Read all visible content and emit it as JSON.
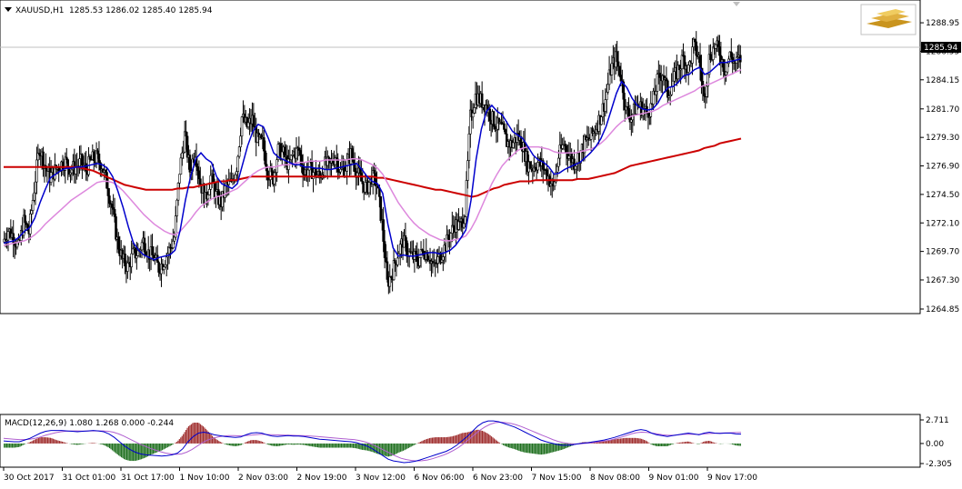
{
  "chart_data": [
    {
      "type": "candlestick",
      "symbol_header": "XAUUSD,H1",
      "ohlc_header": "1285.53 1286.02 1285.40 1285.94",
      "current_price_label": "1285.94",
      "ylim": [
        1264.85,
        1289.95
      ],
      "y_ticks": [
        "1288.95",
        "1286.55",
        "1284.15",
        "1281.70",
        "1279.30",
        "1276.90",
        "1274.50",
        "1272.10",
        "1269.70",
        "1267.30",
        "1264.85"
      ],
      "x_ticks": [
        "30 Oct 2017",
        "31 Oct 01:00",
        "31 Oct 17:00",
        "1 Nov 10:00",
        "2 Nov 03:00",
        "2 Nov 19:00",
        "3 Nov 12:00",
        "6 Nov 06:00",
        "6 Nov 23:00",
        "7 Nov 15:00",
        "8 Nov 08:00",
        "9 Nov 01:00",
        "9 Nov 17:00"
      ],
      "colors": {
        "candle": "#000000",
        "fast_ma": "#0000cc",
        "mid_ma": "#dd88dd",
        "slow_ma": "#cc0000",
        "price_line": "#c0c0c0"
      },
      "close_path": [
        1270.5,
        1271.5,
        1271.0,
        1270.0,
        1272.2,
        1271.3,
        1275.0,
        1278.5,
        1277.0,
        1276.0,
        1276.5,
        1277.0,
        1277.3,
        1276.6,
        1276.8,
        1277.2,
        1276.6,
        1277.4,
        1277.6,
        1277.0,
        1275.4,
        1273.4,
        1270.6,
        1269.0,
        1268.4,
        1269.4,
        1269.6,
        1270.6,
        1269.6,
        1269.2,
        1268.3,
        1268.9,
        1269.8,
        1270.9,
        1276.5,
        1279.5,
        1276.5,
        1278.2,
        1275.5,
        1274.0,
        1276.0,
        1274.4,
        1273.8,
        1275.2,
        1275.4,
        1276.9,
        1281.0,
        1280.2,
        1280.8,
        1279.0,
        1278.8,
        1276.4,
        1275.9,
        1278.2,
        1277.9,
        1276.9,
        1278.0,
        1278.2,
        1276.3,
        1276.7,
        1276.3,
        1276.0,
        1277.0,
        1276.9,
        1277.8,
        1276.4,
        1276.8,
        1277.9,
        1276.6,
        1275.6,
        1275.0,
        1276.0,
        1275.4,
        1272.0,
        1267.0,
        1268.0,
        1269.5,
        1270.6,
        1269.6,
        1269.2,
        1269.0,
        1269.8,
        1269.4,
        1268.3,
        1269.2,
        1270.0,
        1271.0,
        1272.0,
        1271.8,
        1273.0,
        1281.0,
        1282.8,
        1282.4,
        1282.0,
        1281.0,
        1280.3,
        1280.1,
        1278.9,
        1278.7,
        1279.4,
        1278.8,
        1277.1,
        1276.8,
        1277.2,
        1276.8,
        1276.0,
        1275.0,
        1277.7,
        1278.8,
        1277.8,
        1277.2,
        1277.8,
        1278.8,
        1279.2,
        1280.0,
        1281.0,
        1282.5,
        1285.0,
        1286.0,
        1284.5,
        1281.5,
        1281.0,
        1282.0,
        1281.8,
        1281.4,
        1282.0,
        1284.0,
        1284.8,
        1283.0,
        1284.0,
        1285.0,
        1286.0,
        1285.0,
        1287.0,
        1286.0,
        1282.5,
        1286.0,
        1287.0,
        1286.5,
        1285.0,
        1286.2,
        1285.5,
        1285.9
      ],
      "series": [
        {
          "name": "fast_ma",
          "values": [
            1270.4,
            1270.5,
            1270.6,
            1270.9,
            1271.4,
            1271.7,
            1272.5,
            1273.8,
            1274.9,
            1275.9,
            1276.2,
            1276.5,
            1276.7,
            1276.7,
            1276.8,
            1276.8,
            1276.9,
            1277.0,
            1277.1,
            1277.0,
            1276.7,
            1276.0,
            1274.8,
            1273.4,
            1271.8,
            1270.4,
            1269.8,
            1269.4,
            1269.2,
            1269.0,
            1269.2,
            1269.3,
            1269.4,
            1269.8,
            1271.5,
            1274.0,
            1276.0,
            1277.5,
            1278.0,
            1277.5,
            1277.2,
            1276.0,
            1275.4,
            1275.2,
            1275.0,
            1275.4,
            1277.0,
            1278.6,
            1279.8,
            1280.4,
            1280.2,
            1279.2,
            1278.0,
            1277.6,
            1277.4,
            1277.2,
            1277.0,
            1277.0,
            1276.8,
            1276.8,
            1276.7,
            1276.7,
            1276.6,
            1276.6,
            1276.7,
            1276.8,
            1276.9,
            1277.0,
            1277.1,
            1276.6,
            1276.0,
            1275.6,
            1275.4,
            1274.6,
            1272.0,
            1270.0,
            1269.3,
            1269.4,
            1269.3,
            1269.3,
            1269.4,
            1269.5,
            1269.6,
            1269.6,
            1269.5,
            1269.6,
            1269.8,
            1270.2,
            1270.8,
            1271.5,
            1274.0,
            1277.5,
            1280.0,
            1281.5,
            1282.0,
            1281.5,
            1281.2,
            1280.5,
            1279.8,
            1279.5,
            1279.2,
            1278.5,
            1277.8,
            1277.4,
            1277.2,
            1276.8,
            1276.2,
            1276.3,
            1276.6,
            1276.8,
            1277.0,
            1277.2,
            1277.6,
            1278.0,
            1278.5,
            1279.2,
            1280.2,
            1281.6,
            1283.0,
            1284.0,
            1283.5,
            1282.6,
            1282.0,
            1281.7,
            1281.6,
            1281.7,
            1282.2,
            1283.0,
            1283.5,
            1283.6,
            1284.0,
            1284.5,
            1284.6,
            1285.0,
            1285.2,
            1284.6,
            1284.8,
            1285.2,
            1285.6,
            1285.6,
            1285.7,
            1285.8,
            1285.9
          ]
        },
        {
          "name": "mid_ma",
          "values": [
            1270.2,
            1270.3,
            1270.4,
            1270.5,
            1270.6,
            1270.8,
            1271.1,
            1271.5,
            1272.0,
            1272.4,
            1272.8,
            1273.2,
            1273.6,
            1274.0,
            1274.3,
            1274.6,
            1274.9,
            1275.2,
            1275.5,
            1275.6,
            1275.6,
            1275.5,
            1275.2,
            1274.8,
            1274.3,
            1273.8,
            1273.3,
            1272.8,
            1272.4,
            1272.0,
            1271.7,
            1271.4,
            1271.2,
            1271.1,
            1271.4,
            1271.9,
            1272.4,
            1273.0,
            1273.5,
            1273.8,
            1274.1,
            1274.3,
            1274.4,
            1274.6,
            1274.8,
            1275.0,
            1275.4,
            1275.8,
            1276.2,
            1276.5,
            1276.7,
            1276.8,
            1276.8,
            1276.9,
            1277.0,
            1277.0,
            1277.1,
            1277.2,
            1277.2,
            1277.3,
            1277.3,
            1277.3,
            1277.4,
            1277.4,
            1277.4,
            1277.4,
            1277.4,
            1277.5,
            1277.5,
            1277.4,
            1277.2,
            1277.0,
            1276.7,
            1276.2,
            1275.4,
            1274.6,
            1273.8,
            1273.2,
            1272.6,
            1272.1,
            1271.7,
            1271.4,
            1271.1,
            1270.9,
            1270.7,
            1270.6,
            1270.6,
            1270.7,
            1270.8,
            1271.0,
            1271.6,
            1272.4,
            1273.4,
            1274.4,
            1275.4,
            1276.2,
            1276.9,
            1277.4,
            1277.8,
            1278.2,
            1278.4,
            1278.5,
            1278.5,
            1278.5,
            1278.4,
            1278.3,
            1278.1,
            1278.0,
            1278.0,
            1278.0,
            1278.0,
            1278.1,
            1278.2,
            1278.3,
            1278.5,
            1278.8,
            1279.2,
            1279.7,
            1280.2,
            1280.6,
            1280.9,
            1281.1,
            1281.2,
            1281.3,
            1281.4,
            1281.5,
            1281.7,
            1282.0,
            1282.2,
            1282.4,
            1282.6,
            1282.8,
            1283.0,
            1283.2,
            1283.5,
            1283.7,
            1283.8,
            1284.0,
            1284.2,
            1284.4,
            1284.6,
            1284.8,
            1285.0
          ]
        },
        {
          "name": "slow_ma",
          "values": [
            1276.8,
            1276.8,
            1276.8,
            1276.8,
            1276.8,
            1276.8,
            1276.8,
            1276.8,
            1276.8,
            1276.8,
            1276.8,
            1276.8,
            1276.8,
            1276.8,
            1276.8,
            1276.7,
            1276.6,
            1276.5,
            1276.3,
            1276.1,
            1275.9,
            1275.7,
            1275.5,
            1275.3,
            1275.2,
            1275.1,
            1275.0,
            1274.9,
            1274.9,
            1274.9,
            1274.9,
            1274.9,
            1274.9,
            1275.0,
            1275.0,
            1275.1,
            1275.1,
            1275.2,
            1275.3,
            1275.4,
            1275.5,
            1275.6,
            1275.6,
            1275.7,
            1275.7,
            1275.8,
            1275.9,
            1276.0,
            1276.0,
            1276.0,
            1276.0,
            1276.0,
            1276.0,
            1276.0,
            1276.0,
            1276.0,
            1276.0,
            1276.0,
            1276.0,
            1276.0,
            1276.0,
            1276.0,
            1276.0,
            1276.0,
            1276.0,
            1276.0,
            1276.0,
            1276.0,
            1276.0,
            1276.0,
            1276.0,
            1275.9,
            1275.9,
            1275.8,
            1275.7,
            1275.6,
            1275.5,
            1275.4,
            1275.3,
            1275.2,
            1275.1,
            1275.0,
            1274.9,
            1274.9,
            1274.8,
            1274.7,
            1274.6,
            1274.5,
            1274.4,
            1274.3,
            1274.4,
            1274.6,
            1274.8,
            1275.0,
            1275.1,
            1275.3,
            1275.4,
            1275.5,
            1275.6,
            1275.6,
            1275.6,
            1275.7,
            1275.7,
            1275.7,
            1275.7,
            1275.7,
            1275.7,
            1275.7,
            1275.7,
            1275.8,
            1275.8,
            1275.8,
            1275.9,
            1276.0,
            1276.1,
            1276.2,
            1276.3,
            1276.5,
            1276.7,
            1276.9,
            1277.0,
            1277.1,
            1277.2,
            1277.3,
            1277.4,
            1277.5,
            1277.6,
            1277.7,
            1277.8,
            1277.9,
            1278.0,
            1278.1,
            1278.2,
            1278.4,
            1278.5,
            1278.6,
            1278.8,
            1278.9,
            1279.0,
            1279.1,
            1279.2
          ]
        }
      ]
    },
    {
      "type": "bar+line",
      "header": "MACD(12,26,9) 1.080 1.268 0.000 -0.244",
      "ylim": [
        -2.305,
        2.711
      ],
      "y_ticks": [
        "2.711",
        "0.00",
        "-2.305"
      ],
      "colors": {
        "positive_bars": "#a03030",
        "negative_bars": "#207020",
        "macd_line": "#0000cc",
        "signal_line": "#b060d0"
      },
      "series": [
        {
          "name": "MACD",
          "values": [
            0.3,
            0.25,
            0.2,
            0.2,
            0.4,
            0.6,
            0.9,
            1.2,
            1.4,
            1.5,
            1.5,
            1.5,
            1.45,
            1.4,
            1.35,
            1.4,
            1.45,
            1.5,
            1.45,
            1.35,
            1.1,
            0.7,
            0.2,
            -0.3,
            -0.7,
            -1.0,
            -1.2,
            -1.3,
            -1.35,
            -1.4,
            -1.45,
            -1.4,
            -1.3,
            -1.1,
            -0.6,
            0.2,
            0.8,
            1.2,
            1.3,
            1.2,
            1.0,
            0.9,
            0.8,
            0.75,
            0.7,
            0.75,
            1.0,
            1.2,
            1.25,
            1.2,
            1.0,
            0.85,
            0.8,
            0.85,
            0.9,
            0.85,
            0.85,
            0.8,
            0.7,
            0.6,
            0.5,
            0.45,
            0.4,
            0.35,
            0.3,
            0.25,
            0.2,
            0.1,
            -0.1,
            -0.3,
            -0.6,
            -1.0,
            -1.4,
            -1.8,
            -2.0,
            -2.1,
            -2.2,
            -2.15,
            -2.05,
            -1.9,
            -1.7,
            -1.5,
            -1.3,
            -1.1,
            -0.9,
            -0.6,
            -0.2,
            0.3,
            0.8,
            1.4,
            2.0,
            2.4,
            2.6,
            2.6,
            2.5,
            2.3,
            2.1,
            1.9,
            1.6,
            1.3,
            1.0,
            0.7,
            0.4,
            0.2,
            0.05,
            -0.1,
            -0.2,
            -0.2,
            -0.15,
            -0.05,
            0.05,
            0.1,
            0.2,
            0.3,
            0.4,
            0.55,
            0.7,
            0.9,
            1.1,
            1.3,
            1.5,
            1.6,
            1.5,
            1.2,
            1.0,
            0.9,
            0.8,
            0.9,
            1.0,
            1.1,
            1.2,
            1.1,
            1.0,
            1.2,
            1.3,
            1.2,
            1.15,
            1.2,
            1.2,
            1.1,
            1.08
          ]
        },
        {
          "name": "Signal",
          "values": [
            0.6,
            0.55,
            0.5,
            0.45,
            0.45,
            0.5,
            0.6,
            0.75,
            0.95,
            1.1,
            1.25,
            1.35,
            1.42,
            1.45,
            1.45,
            1.44,
            1.44,
            1.45,
            1.46,
            1.45,
            1.4,
            1.3,
            1.1,
            0.85,
            0.55,
            0.25,
            -0.05,
            -0.3,
            -0.55,
            -0.75,
            -0.95,
            -1.1,
            -1.2,
            -1.25,
            -1.2,
            -1.0,
            -0.7,
            -0.3,
            0.1,
            0.4,
            0.6,
            0.75,
            0.85,
            0.9,
            0.9,
            0.88,
            0.9,
            0.95,
            1.0,
            1.05,
            1.05,
            1.02,
            1.0,
            0.98,
            0.96,
            0.94,
            0.92,
            0.9,
            0.88,
            0.84,
            0.8,
            0.75,
            0.7,
            0.65,
            0.6,
            0.55,
            0.5,
            0.45,
            0.35,
            0.2,
            0.0,
            -0.25,
            -0.55,
            -0.85,
            -1.15,
            -1.45,
            -1.7,
            -1.85,
            -1.95,
            -2.0,
            -1.98,
            -1.9,
            -1.75,
            -1.55,
            -1.35,
            -1.1,
            -0.8,
            -0.45,
            0.0,
            0.5,
            1.0,
            1.5,
            1.9,
            2.2,
            2.4,
            2.45,
            2.4,
            2.3,
            2.15,
            1.95,
            1.7,
            1.45,
            1.2,
            0.95,
            0.7,
            0.45,
            0.25,
            0.1,
            0.0,
            -0.05,
            -0.05,
            0.0,
            0.05,
            0.12,
            0.2,
            0.3,
            0.4,
            0.55,
            0.7,
            0.9,
            1.1,
            1.25,
            1.3,
            1.28,
            1.2,
            1.1,
            1.0,
            0.95,
            0.95,
            1.0,
            1.05,
            1.08,
            1.05,
            1.05,
            1.1,
            1.15,
            1.18,
            1.2,
            1.22,
            1.24,
            1.26,
            1.268
          ]
        }
      ]
    }
  ]
}
